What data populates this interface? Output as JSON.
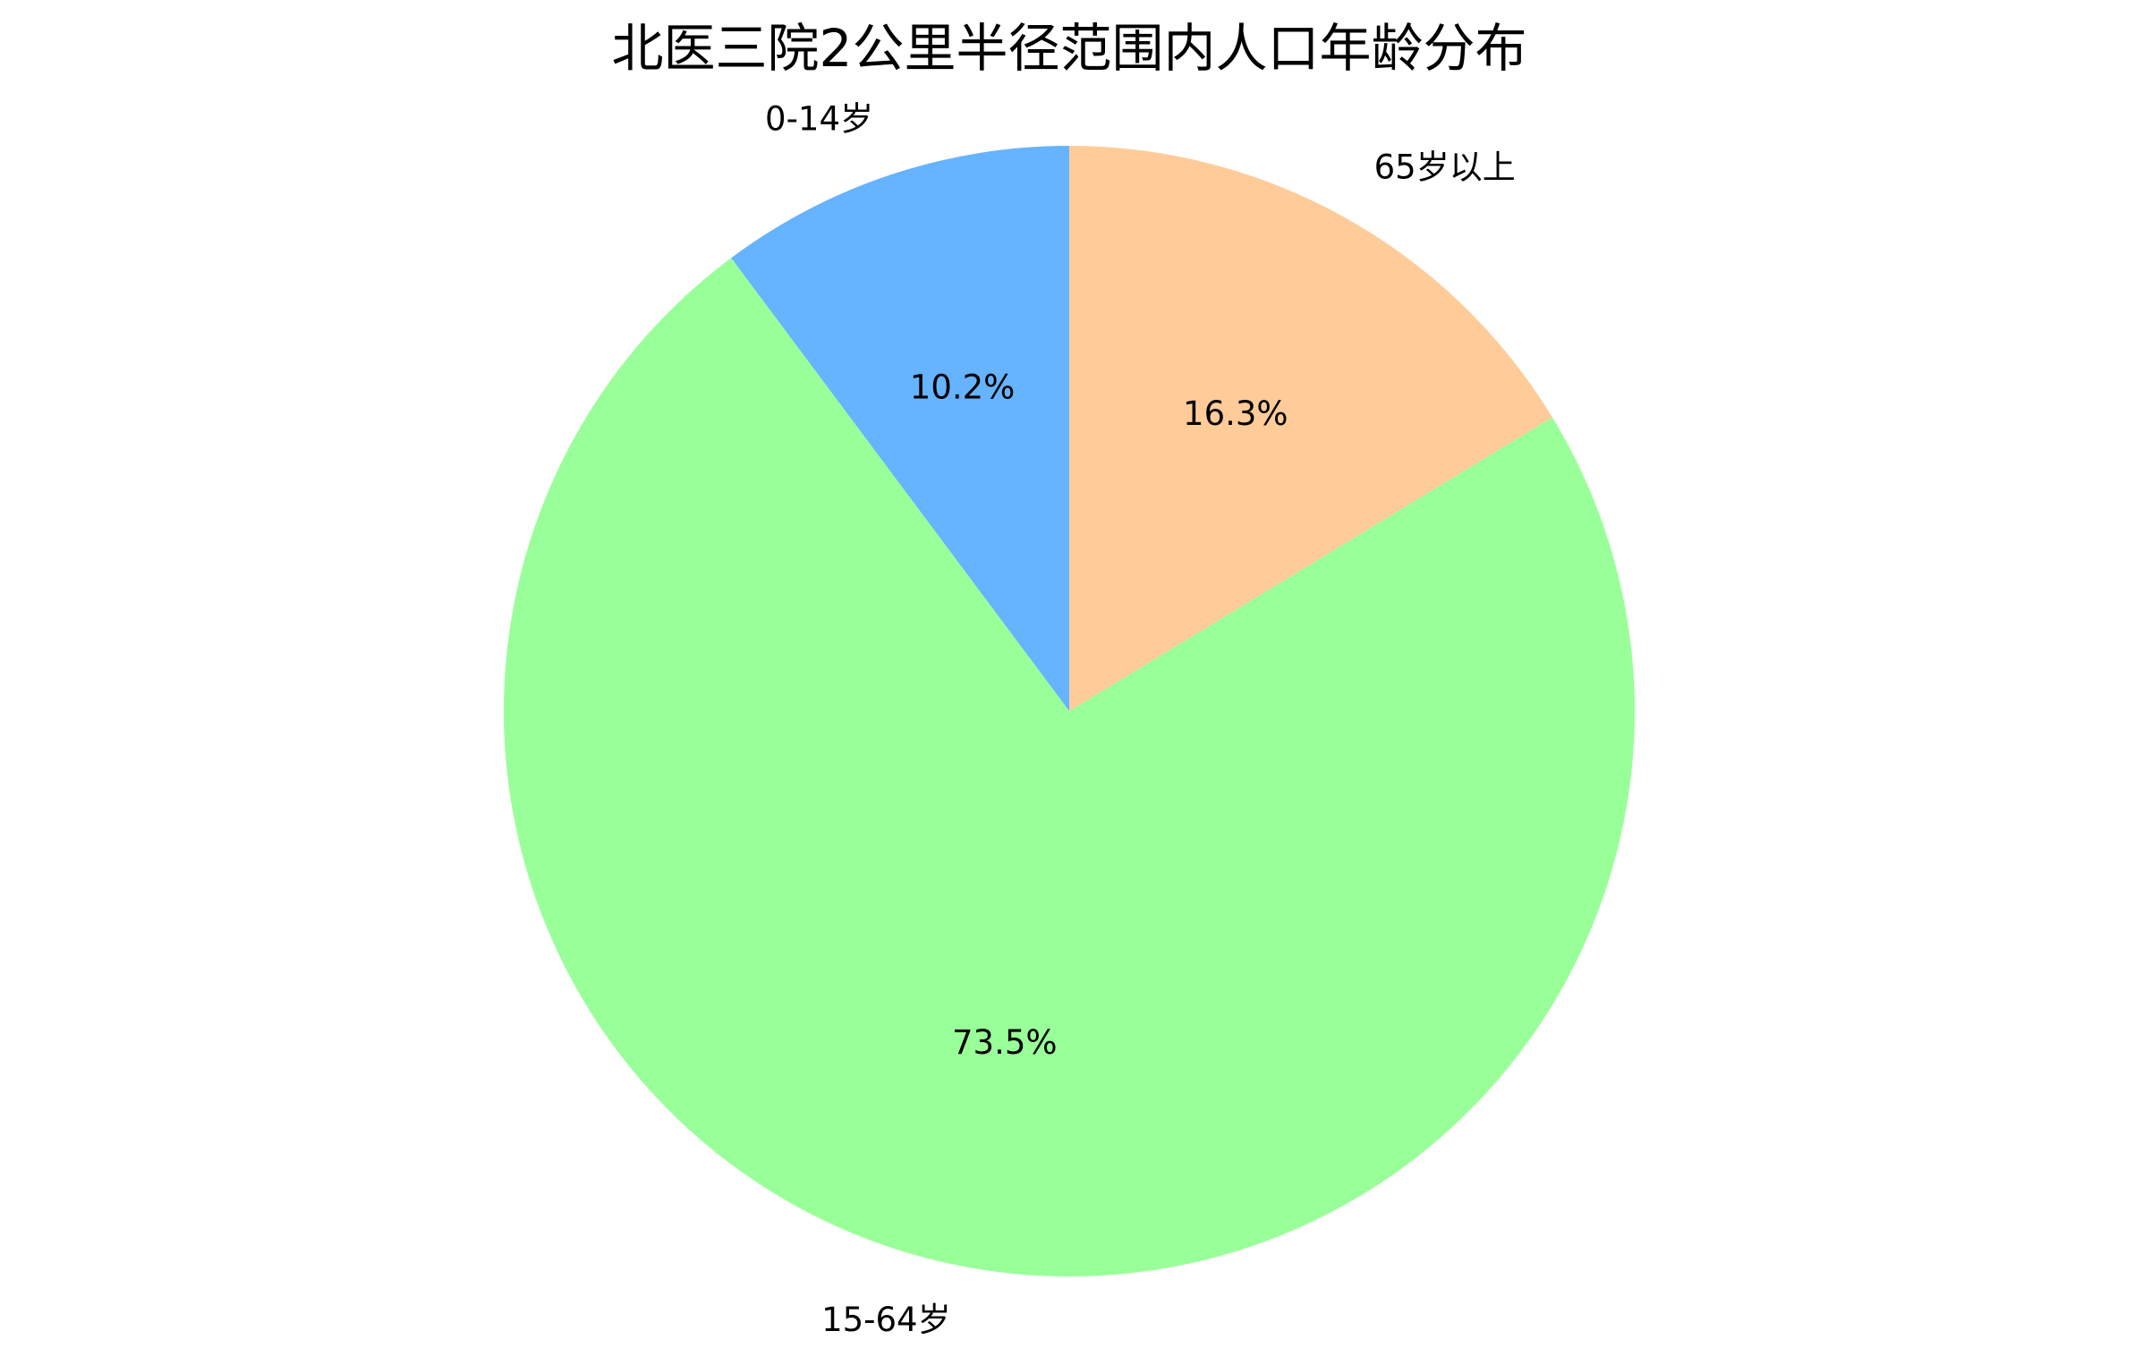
{
  "chart_data": {
    "type": "pie",
    "title": "北医三院2公里半径范围内人口年龄分布",
    "start_angle_deg": 90,
    "direction": "counterclockwise",
    "slices": [
      {
        "label": "0-14岁",
        "value": 10.2,
        "percent_label": "10.2%",
        "color": "#66b3ff"
      },
      {
        "label": "15-64岁",
        "value": 73.5,
        "percent_label": "73.5%",
        "color": "#99ff99"
      },
      {
        "label": "65岁以上",
        "value": 16.3,
        "percent_label": "16.3%",
        "color": "#ffcc99"
      }
    ]
  }
}
